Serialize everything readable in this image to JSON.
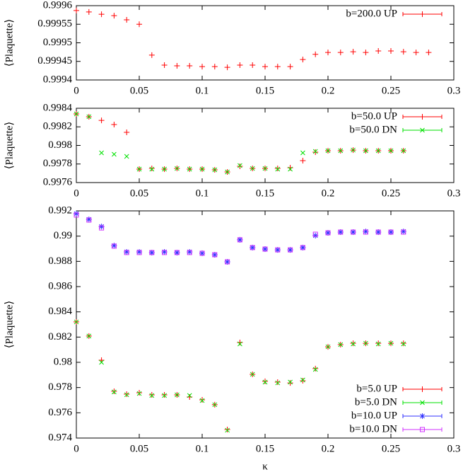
{
  "chart_data": [
    {
      "type": "scatter",
      "ylabel": "⟨Plaquette⟩",
      "legend": "top-right",
      "x": [
        0,
        0.01,
        0.02,
        0.03,
        0.04,
        0.05,
        0.06,
        0.07,
        0.08,
        0.09,
        0.1,
        0.11,
        0.12,
        0.13,
        0.14,
        0.15,
        0.16,
        0.17,
        0.18,
        0.19,
        0.2,
        0.21,
        0.22,
        0.23,
        0.24,
        0.25,
        0.26,
        0.27,
        0.28
      ],
      "series": [
        {
          "name": "b=200.0 UP",
          "color": "#ff0000",
          "marker": "plus",
          "values": [
            0.999587,
            0.999583,
            0.999577,
            0.999573,
            0.999562,
            0.99955,
            0.999467,
            0.99944,
            0.999438,
            0.999438,
            0.999436,
            0.999436,
            0.999434,
            0.99944,
            0.99944,
            0.999436,
            0.999436,
            0.999436,
            0.999455,
            0.999469,
            0.999474,
            0.999474,
            0.999476,
            0.999474,
            0.999478,
            0.999478,
            0.999476,
            0.999474,
            0.999474
          ]
        }
      ],
      "xlim": [
        0,
        0.3
      ],
      "xticks": [
        0,
        0.05,
        0.1,
        0.15,
        0.2,
        0.25,
        0.3
      ],
      "ylim": [
        0.9994,
        0.9996
      ],
      "yticks": [
        0.9994,
        0.99945,
        0.9995,
        0.99955,
        0.9996
      ]
    },
    {
      "type": "scatter",
      "ylabel": "⟨Plaquette⟩",
      "legend": "top-right",
      "x": [
        0,
        0.01,
        0.02,
        0.03,
        0.04,
        0.05,
        0.06,
        0.07,
        0.08,
        0.09,
        0.1,
        0.11,
        0.12,
        0.13,
        0.14,
        0.15,
        0.16,
        0.17,
        0.18,
        0.19,
        0.2,
        0.21,
        0.22,
        0.23,
        0.24,
        0.25,
        0.26
      ],
      "series": [
        {
          "name": "b=50.0 UP",
          "color": "#ff0000",
          "marker": "plus",
          "values": [
            0.998339,
            0.998309,
            0.99827,
            0.998225,
            0.998141,
            0.997745,
            0.997752,
            0.997745,
            0.997752,
            0.997745,
            0.997745,
            0.997737,
            0.997714,
            0.997775,
            0.997752,
            0.997752,
            0.997752,
            0.99776,
            0.997836,
            0.997928,
            0.997943,
            0.997943,
            0.99795,
            0.997943,
            0.997943,
            0.997943,
            0.997943
          ]
        },
        {
          "name": "b=50.0 DN",
          "color": "#00e000",
          "marker": "cross",
          "values": [
            0.998339,
            0.998309,
            0.99792,
            0.997905,
            0.997882,
            0.997745,
            0.997745,
            0.997745,
            0.997752,
            0.997745,
            0.997745,
            0.997737,
            0.997714,
            0.997783,
            0.997752,
            0.997752,
            0.997745,
            0.997745,
            0.99792,
            0.997935,
            0.997943,
            0.997943,
            0.99795,
            0.997943,
            0.997943,
            0.997943,
            0.997943
          ]
        }
      ],
      "xlim": [
        0,
        0.3
      ],
      "xticks": [
        0,
        0.05,
        0.1,
        0.15,
        0.2,
        0.25,
        0.3
      ],
      "ylim": [
        0.9976,
        0.9984
      ],
      "yticks": [
        0.9976,
        0.9978,
        0.998,
        0.9982,
        0.9984
      ]
    },
    {
      "type": "scatter",
      "ylabel": "⟨Plaquette⟩",
      "xlabel": "κ",
      "legend": "bottom-right",
      "x": [
        0,
        0.01,
        0.02,
        0.03,
        0.04,
        0.05,
        0.06,
        0.07,
        0.08,
        0.09,
        0.1,
        0.11,
        0.12,
        0.13,
        0.14,
        0.15,
        0.16,
        0.17,
        0.18,
        0.19,
        0.2,
        0.21,
        0.22,
        0.23,
        0.24,
        0.25,
        0.26
      ],
      "series": [
        {
          "name": "b=5.0 UP",
          "color": "#ff0000",
          "marker": "plus",
          "values": [
            0.9832,
            0.98208,
            0.98017,
            0.9777,
            0.97748,
            0.97759,
            0.97742,
            0.97742,
            0.97742,
            0.97725,
            0.97703,
            0.97664,
            0.97467,
            0.98157,
            0.97905,
            0.97849,
            0.97843,
            0.97837,
            0.97854,
            0.9795,
            0.98123,
            0.9814,
            0.98151,
            0.98151,
            0.98151,
            0.98151,
            0.98151
          ]
        },
        {
          "name": "b=5.0 DN",
          "color": "#00e000",
          "marker": "cross",
          "values": [
            0.9832,
            0.98208,
            0.98,
            0.97765,
            0.97743,
            0.97753,
            0.97737,
            0.97737,
            0.97742,
            0.97737,
            0.97697,
            0.97664,
            0.97462,
            0.98146,
            0.97905,
            0.97843,
            0.97837,
            0.97843,
            0.9786,
            0.97944,
            0.98123,
            0.9814,
            0.98146,
            0.98151,
            0.98146,
            0.98151,
            0.98146
          ]
        },
        {
          "name": "b=10.0 UP",
          "color": "#3030ff",
          "marker": "star",
          "values": [
            0.99178,
            0.99133,
            0.99076,
            0.98925,
            0.98875,
            0.98875,
            0.98869,
            0.98875,
            0.98869,
            0.98875,
            0.98864,
            0.98852,
            0.98796,
            0.98971,
            0.98909,
            0.98897,
            0.98891,
            0.98891,
            0.98909,
            0.99004,
            0.99026,
            0.99032,
            0.99032,
            0.99037,
            0.99032,
            0.99032,
            0.99037
          ]
        },
        {
          "name": "b=10.0 DN",
          "color": "#d030ff",
          "marker": "square",
          "values": [
            0.99167,
            0.99127,
            0.99065,
            0.9892,
            0.9887,
            0.9887,
            0.9887,
            0.9887,
            0.9887,
            0.9887,
            0.98864,
            0.98852,
            0.98796,
            0.98971,
            0.98909,
            0.98897,
            0.98891,
            0.98891,
            0.98909,
            0.99015,
            0.99026,
            0.99032,
            0.99032,
            0.99032,
            0.99032,
            0.99032,
            0.99032
          ]
        }
      ],
      "xlim": [
        0,
        0.3
      ],
      "xticks": [
        0,
        0.05,
        0.1,
        0.15,
        0.2,
        0.25,
        0.3
      ],
      "ylim": [
        0.974,
        0.992
      ],
      "yticks": [
        0.974,
        0.976,
        0.978,
        0.98,
        0.982,
        0.984,
        0.986,
        0.988,
        0.99,
        0.992
      ]
    }
  ]
}
